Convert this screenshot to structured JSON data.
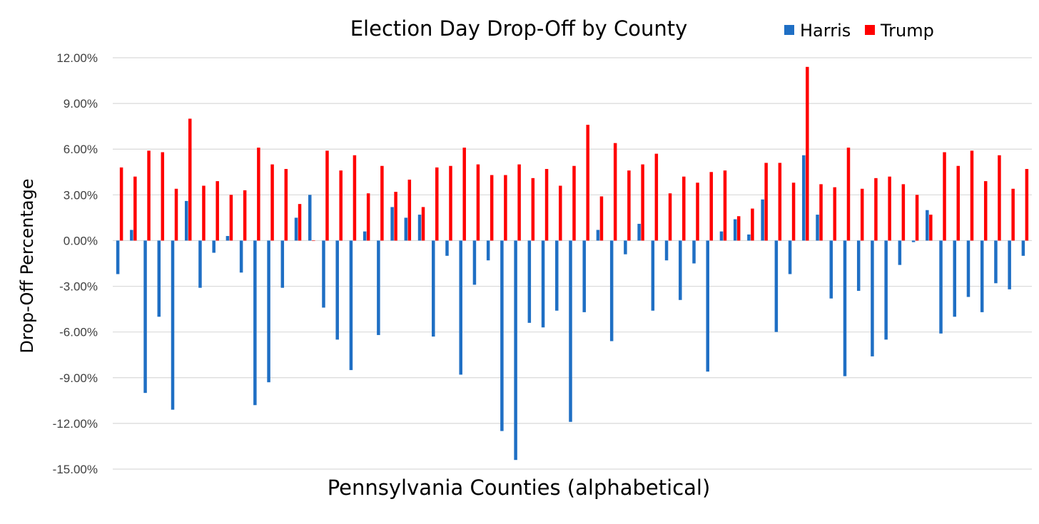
{
  "chart_data": {
    "type": "bar",
    "title": "Election Day Drop-Off by County",
    "xlabel": "Pennsylvania Counties (alphabetical)",
    "ylabel": "Drop-Off Percentage",
    "ylim": [
      -15,
      12
    ],
    "yticks": [
      12,
      9,
      6,
      3,
      0,
      -3,
      -6,
      -9,
      -12,
      -15
    ],
    "ytick_labels": [
      "12.00%",
      "9.00%",
      "6.00%",
      "3.00%",
      "0.00%",
      "-3.00%",
      "-6.00%",
      "-9.00%",
      "-12.00%",
      "-15.00%"
    ],
    "grid": true,
    "legend_position": "top-right",
    "colors": {
      "Harris": "#1f6fc4",
      "Trump": "#ff0000"
    },
    "series": [
      {
        "name": "Harris",
        "values": [
          -2.2,
          0.7,
          -10.0,
          -5.0,
          -11.1,
          2.6,
          -3.1,
          -0.8,
          0.3,
          -2.1,
          -10.8,
          -9.3,
          -3.1,
          1.5,
          3.0,
          -4.4,
          -6.5,
          -8.5,
          0.6,
          -6.2,
          2.2,
          1.5,
          1.7,
          -6.3,
          -1.0,
          -8.8,
          -2.9,
          -1.3,
          -12.5,
          -14.4,
          -5.4,
          -5.7,
          -4.6,
          -11.9,
          -4.7,
          0.7,
          -6.6,
          -0.9,
          1.1,
          -4.6,
          -1.3,
          -3.9,
          -1.5,
          -8.6,
          0.6,
          1.4,
          0.4,
          2.7,
          -6.0,
          -2.2,
          5.6,
          1.7,
          -3.8,
          -8.9,
          -3.3,
          -7.6,
          -6.5,
          -1.6,
          -0.1,
          2.0,
          -6.1,
          -5.0,
          -3.7,
          -4.7,
          -2.8,
          -3.2,
          -1.0
        ]
      },
      {
        "name": "Trump",
        "values": [
          4.8,
          4.2,
          5.9,
          5.8,
          3.4,
          8.0,
          3.6,
          3.9,
          3.0,
          3.3,
          6.1,
          5.0,
          4.7,
          2.4,
          0.0,
          5.9,
          4.6,
          5.6,
          3.1,
          4.9,
          3.2,
          4.0,
          2.2,
          4.8,
          4.9,
          6.1,
          5.0,
          4.3,
          4.3,
          5.0,
          4.1,
          4.7,
          3.6,
          4.9,
          7.6,
          2.9,
          6.4,
          4.6,
          5.0,
          5.7,
          3.1,
          4.2,
          3.8,
          4.5,
          4.6,
          1.6,
          2.1,
          5.1,
          5.1,
          3.8,
          11.4,
          3.7,
          3.5,
          6.1,
          3.4,
          4.1,
          4.2,
          3.7,
          3.0,
          1.7,
          5.8,
          4.9,
          5.9,
          3.9,
          5.6,
          3.4,
          4.7
        ]
      }
    ]
  }
}
